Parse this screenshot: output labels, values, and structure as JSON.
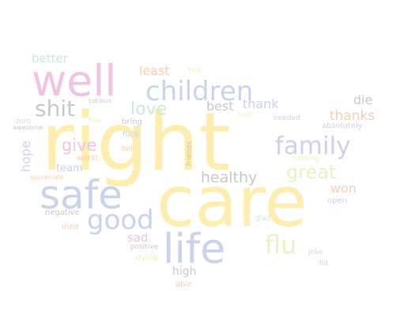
{
  "palette": {
    "yellow": "#fdeeb0",
    "blue": "#c9d3ea",
    "pink": "#efc3e2",
    "green": "#c9ebd8",
    "gray": "#c8c8c8",
    "lime": "#e6f3c2",
    "orange": "#f5cfb1"
  },
  "words": [
    {
      "text": "right",
      "color": "#fdeeb0",
      "vertical": false
    },
    {
      "text": "care",
      "color": "#fdeeb0",
      "vertical": false
    },
    {
      "text": "well",
      "color": "#efc3e2",
      "vertical": false
    },
    {
      "text": "safe",
      "color": "#c9d3ea",
      "vertical": false
    },
    {
      "text": "life",
      "color": "#c9d3ea",
      "vertical": false
    },
    {
      "text": "children",
      "color": "#c9d3ea",
      "vertical": false
    },
    {
      "text": "family",
      "color": "#c9d3ea",
      "vertical": false
    },
    {
      "text": "good",
      "color": "#c9d3ea",
      "vertical": false
    },
    {
      "text": "flu",
      "color": "#e6f3c2",
      "vertical": false
    },
    {
      "text": "shit",
      "color": "#c8c8c8",
      "vertical": false
    },
    {
      "text": "great",
      "color": "#e6f3c2",
      "vertical": false
    },
    {
      "text": "love",
      "color": "#c9ebd8",
      "vertical": false
    },
    {
      "text": "give",
      "color": "#efc3e2",
      "vertical": false
    },
    {
      "text": "healthy",
      "color": "#c8c8c8",
      "vertical": false
    },
    {
      "text": "better",
      "color": "#c9ebd8",
      "vertical": false
    },
    {
      "text": "least",
      "color": "#f5cfb1",
      "vertical": false
    },
    {
      "text": "best",
      "color": "#c8c8c8",
      "vertical": false
    },
    {
      "text": "thank",
      "color": "#c9d3ea",
      "vertical": false
    },
    {
      "text": "thanks",
      "color": "#f5cfb1",
      "vertical": false
    },
    {
      "text": "die",
      "color": "#c8c8c8",
      "vertical": false
    },
    {
      "text": "won",
      "color": "#f5cfb1",
      "vertical": false
    },
    {
      "text": "hope",
      "color": "#c9d3ea",
      "vertical": true
    },
    {
      "text": "team",
      "color": "#c9d3ea",
      "vertical": false
    },
    {
      "text": "sad",
      "color": "#efc3e2",
      "vertical": false
    },
    {
      "text": "high",
      "color": "#c8c8c8",
      "vertical": false
    },
    {
      "text": "absolutely",
      "color": "#c9d3ea",
      "vertical": false
    },
    {
      "text": "bring",
      "color": "#c8c8c8",
      "vertical": false
    },
    {
      "text": "fuck",
      "color": "#c9d3ea",
      "vertical": false
    },
    {
      "text": "worst",
      "color": "#f5cfb1",
      "vertical": false
    },
    {
      "text": "open",
      "color": "#c9d3ea",
      "vertical": false
    },
    {
      "text": "negative",
      "color": "#c8c8c8",
      "vertical": false
    },
    {
      "text": "died",
      "color": "#f5cfb1",
      "vertical": false
    },
    {
      "text": "glad",
      "color": "#c9ebd8",
      "vertical": false
    },
    {
      "text": "positive",
      "color": "#c8c8c8",
      "vertical": false
    },
    {
      "text": "dying",
      "color": "#e6f3c2",
      "vertical": false
    },
    {
      "text": "able",
      "color": "#f5cfb1",
      "vertical": false
    },
    {
      "text": "joke",
      "color": "#f5cfb1",
      "vertical": false
    },
    {
      "text": "hit",
      "color": "#efc3e2",
      "vertical": false
    },
    {
      "text": "needed",
      "color": "#c9d3ea",
      "vertical": false
    },
    {
      "text": "bad",
      "color": "#fdeeb0",
      "vertical": false
    },
    {
      "text": "nothing",
      "color": "#e6f3c2",
      "vertical": false
    },
    {
      "text": "friends",
      "color": "#c8c8c8",
      "vertical": true
    },
    {
      "text": "hell",
      "color": "#f5cfb1",
      "vertical": false
    },
    {
      "text": "free",
      "color": "#e6f3c2",
      "vertical": false
    },
    {
      "text": "zero",
      "color": "#f5cfb1",
      "vertical": false
    },
    {
      "text": "awesome",
      "color": "#c8c8c8",
      "vertical": false
    },
    {
      "text": "appreciate",
      "color": "#f5cfb1",
      "vertical": false
    },
    {
      "text": "fine",
      "color": "#fdeeb0",
      "vertical": false
    },
    {
      "text": "curious",
      "color": "#c8c8c8",
      "vertical": false
    }
  ]
}
